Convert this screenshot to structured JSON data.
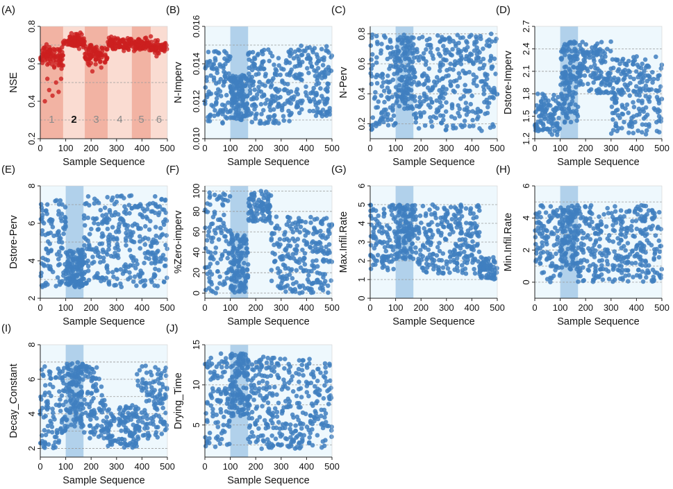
{
  "figure": {
    "bg_color": "#eef8fd",
    "point_color": "#3f7fbf",
    "highlight_color": "#7fb0dc",
    "nse_point_color": "#cc1f1f",
    "nse_band_color": "#f2b3a3",
    "nse_band_color_light": "#fadcd2"
  },
  "chart_data": [
    {
      "id": "A",
      "panel_label": "(A)",
      "type": "scatter",
      "xlabel": "Sample Sequence",
      "ylabel": "NSE",
      "xlim": [
        0,
        500
      ],
      "ylim": [
        0.2,
        0.8
      ],
      "xticks": [
        "0",
        "100",
        "200",
        "300",
        "400",
        "500"
      ],
      "yticks": [
        "0.2",
        "0.4",
        "0.6",
        "0.8"
      ],
      "grid_y": [
        0.3,
        0.5,
        0.7
      ],
      "stages": [
        {
          "label": "1",
          "from": 0,
          "to": 90,
          "bold": false
        },
        {
          "label": "2",
          "from": 90,
          "to": 175,
          "bold": true
        },
        {
          "label": "3",
          "from": 175,
          "to": 265,
          "bold": false
        },
        {
          "label": "4",
          "from": 265,
          "to": 360,
          "bold": false
        },
        {
          "label": "5",
          "from": 360,
          "to": 435,
          "bold": false
        },
        {
          "label": "6",
          "from": 435,
          "to": 500,
          "bold": false
        }
      ],
      "segments": [
        {
          "from": 0,
          "to": 90,
          "center": 0.64,
          "spread": 0.05
        },
        {
          "from": 90,
          "to": 175,
          "center": 0.72,
          "spread": 0.03
        },
        {
          "from": 175,
          "to": 265,
          "center": 0.65,
          "spread": 0.04
        },
        {
          "from": 265,
          "to": 360,
          "center": 0.71,
          "spread": 0.03
        },
        {
          "from": 360,
          "to": 435,
          "center": 0.7,
          "spread": 0.03
        },
        {
          "from": 435,
          "to": 500,
          "center": 0.69,
          "spread": 0.03
        }
      ],
      "outliers": [
        [
          18,
          0.4
        ],
        [
          35,
          0.46
        ],
        [
          48,
          0.43
        ],
        [
          62,
          0.5
        ],
        [
          72,
          0.45
        ],
        [
          82,
          0.52
        ],
        [
          55,
          0.58
        ],
        [
          28,
          0.52
        ],
        [
          188,
          0.6
        ],
        [
          205,
          0.56
        ],
        [
          240,
          0.58
        ]
      ]
    },
    {
      "id": "B",
      "panel_label": "(B)",
      "type": "scatter",
      "xlabel": "Sample Sequence",
      "ylabel": "N-Imperv",
      "xlim": [
        0,
        500
      ],
      "ylim": [
        0.01,
        0.016
      ],
      "xticks": [
        "0",
        "100",
        "200",
        "300",
        "400",
        "500"
      ],
      "yticks": [
        "0.010",
        "0.012",
        "0.014",
        "0.016"
      ],
      "grid_y": [
        0.011,
        0.013,
        0.015
      ],
      "highlight": [
        100,
        170
      ],
      "segments": [
        {
          "from": 0,
          "to": 100,
          "lo": 0.0108,
          "hi": 0.0148
        },
        {
          "from": 100,
          "to": 170,
          "lo": 0.011,
          "hi": 0.0134,
          "dense": true
        },
        {
          "from": 170,
          "to": 350,
          "lo": 0.0108,
          "hi": 0.0148
        },
        {
          "from": 350,
          "to": 500,
          "lo": 0.0112,
          "hi": 0.015
        }
      ]
    },
    {
      "id": "C",
      "panel_label": "(C)",
      "type": "scatter",
      "xlabel": "Sample Sequence",
      "ylabel": "N-Perv",
      "xlim": [
        0,
        500
      ],
      "ylim": [
        0.1,
        0.85
      ],
      "xticks": [
        "0",
        "100",
        "200",
        "300",
        "400",
        "500"
      ],
      "yticks": [
        "0.2",
        "0.4",
        "0.6",
        "0.8"
      ],
      "grid_y": [
        0.2,
        0.4,
        0.6,
        0.8
      ],
      "highlight": [
        100,
        170
      ],
      "segments": [
        {
          "from": 0,
          "to": 100,
          "lo": 0.15,
          "hi": 0.8
        },
        {
          "from": 100,
          "to": 170,
          "lo": 0.3,
          "hi": 0.8,
          "dense": true
        },
        {
          "from": 170,
          "to": 500,
          "lo": 0.15,
          "hi": 0.8
        }
      ]
    },
    {
      "id": "D",
      "panel_label": "(D)",
      "type": "scatter",
      "xlabel": "Sample Sequence",
      "ylabel": "Dstore-Imperv",
      "xlim": [
        0,
        500
      ],
      "ylim": [
        1.2,
        2.7
      ],
      "xticks": [
        "0",
        "100",
        "200",
        "300",
        "400",
        "500"
      ],
      "yticks": [
        "1.2",
        "1.5",
        "1.8",
        "2.1",
        "2.4",
        "2.7"
      ],
      "grid_y": [
        1.45,
        1.8,
        2.1,
        2.4
      ],
      "highlight": [
        100,
        170
      ],
      "segments": [
        {
          "from": 0,
          "to": 100,
          "lo": 1.25,
          "hi": 1.8
        },
        {
          "from": 100,
          "to": 170,
          "lo": 1.4,
          "hi": 2.5,
          "dense": true
        },
        {
          "from": 170,
          "to": 300,
          "lo": 1.8,
          "hi": 2.5
        },
        {
          "from": 300,
          "to": 500,
          "lo": 1.25,
          "hi": 2.3
        }
      ]
    },
    {
      "id": "E",
      "panel_label": "(E)",
      "type": "scatter",
      "xlabel": "Sample Sequence",
      "ylabel": "Dstore-Perv",
      "xlim": [
        0,
        500
      ],
      "ylim": [
        2,
        8
      ],
      "xticks": [
        "0",
        "100",
        "200",
        "300",
        "400",
        "500"
      ],
      "yticks": [
        "2",
        "4",
        "6",
        "8"
      ],
      "grid_y": [
        3,
        5,
        7
      ],
      "highlight": [
        100,
        170
      ],
      "segments": [
        {
          "from": 0,
          "to": 100,
          "lo": 2.6,
          "hi": 7.4
        },
        {
          "from": 100,
          "to": 170,
          "lo": 2.6,
          "hi": 4.6,
          "dense": true
        },
        {
          "from": 170,
          "to": 500,
          "lo": 2.6,
          "hi": 7.5
        }
      ]
    },
    {
      "id": "F",
      "panel_label": "(F)",
      "type": "scatter",
      "xlabel": "Sample Sequence",
      "ylabel": "%Zero-imperv",
      "xlim": [
        0,
        500
      ],
      "ylim": [
        -5,
        105
      ],
      "xticks": [
        "0",
        "100",
        "200",
        "300",
        "400",
        "500"
      ],
      "yticks": [
        "0",
        "20",
        "40",
        "60",
        "80",
        "100"
      ],
      "grid_y": [
        0,
        20,
        40,
        60,
        80,
        100
      ],
      "highlight": [
        100,
        170
      ],
      "segments": [
        {
          "from": 0,
          "to": 100,
          "lo": 0,
          "hi": 100
        },
        {
          "from": 100,
          "to": 170,
          "lo": 0,
          "hi": 60,
          "dense": true
        },
        {
          "from": 170,
          "to": 260,
          "lo": 70,
          "hi": 100
        },
        {
          "from": 260,
          "to": 500,
          "lo": 0,
          "hi": 75
        }
      ]
    },
    {
      "id": "G",
      "panel_label": "(G)",
      "type": "scatter",
      "xlabel": "Sample Sequence",
      "ylabel": "Max.Infil.Rate",
      "xlim": [
        0,
        500
      ],
      "ylim": [
        0,
        6
      ],
      "xticks": [
        "0",
        "100",
        "200",
        "300",
        "400",
        "500"
      ],
      "yticks": [
        "0",
        "1",
        "2",
        "3",
        "4",
        "5",
        "6"
      ],
      "grid_y": [
        1,
        2,
        3,
        4,
        5
      ],
      "highlight": [
        100,
        170
      ],
      "segments": [
        {
          "from": 0,
          "to": 100,
          "lo": 1.5,
          "hi": 5
        },
        {
          "from": 100,
          "to": 170,
          "lo": 2,
          "hi": 5,
          "dense": true
        },
        {
          "from": 170,
          "to": 430,
          "lo": 1.3,
          "hi": 5
        },
        {
          "from": 430,
          "to": 500,
          "lo": 1,
          "hi": 2.2
        }
      ]
    },
    {
      "id": "H",
      "panel_label": "(H)",
      "type": "scatter",
      "xlabel": "Sample Sequence",
      "ylabel": "Min.Infil.Rate",
      "xlim": [
        0,
        500
      ],
      "ylim": [
        -1,
        6
      ],
      "xticks": [
        "0",
        "100",
        "200",
        "300",
        "400",
        "500"
      ],
      "yticks": [
        "0",
        "2",
        "4",
        "6"
      ],
      "grid_y": [
        0,
        1,
        2,
        3,
        4,
        5
      ],
      "highlight": [
        100,
        170
      ],
      "segments": [
        {
          "from": 0,
          "to": 100,
          "lo": 0,
          "hi": 4.8
        },
        {
          "from": 100,
          "to": 170,
          "lo": 0.8,
          "hi": 4.8,
          "dense": true
        },
        {
          "from": 170,
          "to": 500,
          "lo": 0,
          "hi": 4.8
        }
      ]
    },
    {
      "id": "I",
      "panel_label": "(I)",
      "type": "scatter",
      "xlabel": "Sample Sequence",
      "ylabel": "Decay_Constant",
      "xlim": [
        0,
        500
      ],
      "ylim": [
        1.5,
        8
      ],
      "xticks": [
        "0",
        "100",
        "200",
        "300",
        "400",
        "500"
      ],
      "yticks": [
        "2",
        "4",
        "6",
        "8"
      ],
      "grid_y": [
        2,
        3,
        4,
        5,
        6,
        7
      ],
      "highlight": [
        100,
        170
      ],
      "segments": [
        {
          "from": 0,
          "to": 100,
          "lo": 2,
          "hi": 6.8
        },
        {
          "from": 100,
          "to": 170,
          "lo": 3.2,
          "hi": 7,
          "dense": true
        },
        {
          "from": 170,
          "to": 260,
          "lo": 2.5,
          "hi": 6.8
        },
        {
          "from": 260,
          "to": 380,
          "lo": 2,
          "hi": 4.5
        },
        {
          "from": 380,
          "to": 500,
          "lo": 2.5,
          "hi": 6.8
        }
      ]
    },
    {
      "id": "J",
      "panel_label": "(J)",
      "type": "scatter",
      "xlabel": "Sample Sequence",
      "ylabel": "Drying_Time",
      "xlim": [
        0,
        500
      ],
      "ylim": [
        1,
        15
      ],
      "xticks": [
        "0",
        "100",
        "200",
        "300",
        "400",
        "500"
      ],
      "yticks": [
        "5",
        "10",
        "15"
      ],
      "grid_y": [
        2.5,
        5,
        7.5,
        10,
        12.5
      ],
      "highlight": [
        100,
        170
      ],
      "segments": [
        {
          "from": 0,
          "to": 100,
          "lo": 2,
          "hi": 14
        },
        {
          "from": 100,
          "to": 170,
          "lo": 6,
          "hi": 14,
          "dense": true
        },
        {
          "from": 170,
          "to": 500,
          "lo": 2,
          "hi": 13.5
        }
      ]
    }
  ]
}
